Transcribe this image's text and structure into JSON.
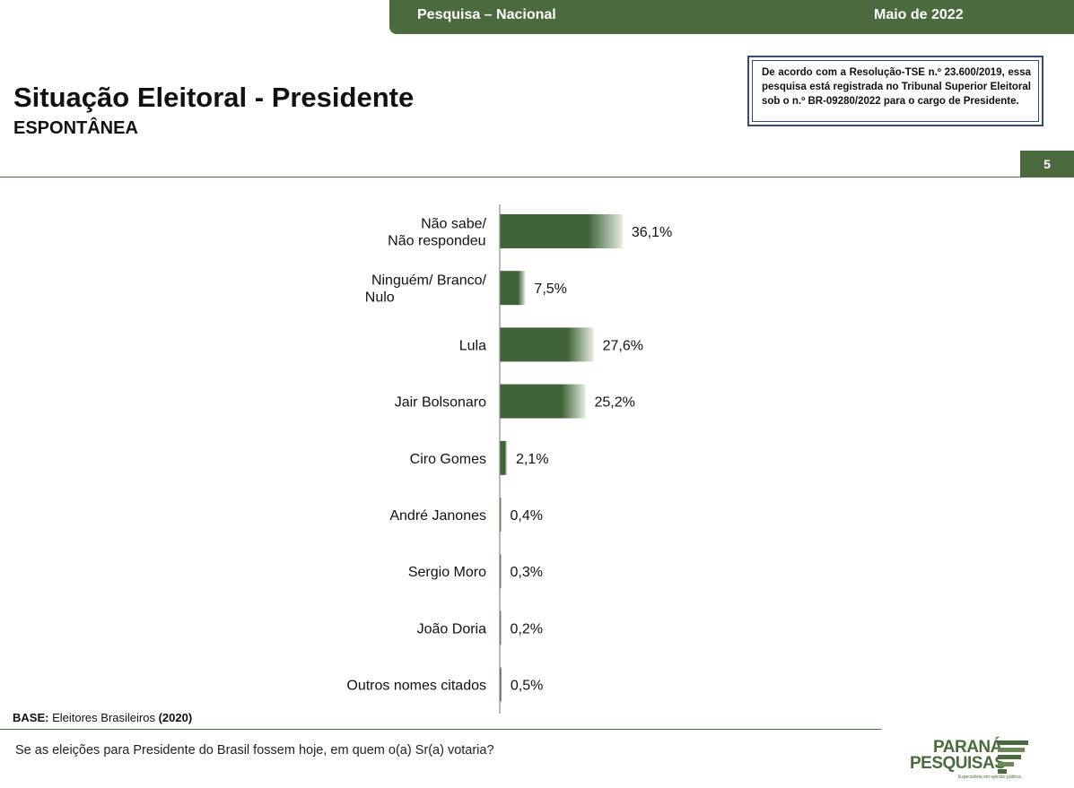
{
  "header": {
    "survey": "Pesquisa – Nacional",
    "date": "Maio de 2022"
  },
  "page": {
    "title": "Situação Eleitoral - Presidente",
    "subtitle": "ESPONTÂNEA",
    "number": "5"
  },
  "notice": "De acordo com a Resolução-TSE n.º 23.600/2019, essa pesquisa está registrada no Tribunal Superior Eleitoral sob o n.º BR-09280/2022 para o cargo de Presidente.",
  "base": {
    "label": "BASE:",
    "text": "Eleitores Brasileiros",
    "year": "(2020)"
  },
  "question": "Se as eleições para Presidente do Brasil fossem hoje, em quem o(a) Sr(a) votaria?",
  "logo": {
    "line1": "PARANÁ",
    "line2": "PESQUISAS",
    "tagline": "Especialista em opinião pública."
  },
  "colors": {
    "accent": "#4b6b3e",
    "bar_dark": "#3f6238",
    "bar_light": "#e4eee0"
  },
  "chart_data": {
    "type": "bar",
    "orientation": "horizontal",
    "categories": [
      [
        "Não sabe/",
        "Não respondeu"
      ],
      [
        "Ninguém/ Branco/",
        "Nulo"
      ],
      [
        "Lula"
      ],
      [
        "Jair Bolsonaro"
      ],
      [
        "Ciro Gomes"
      ],
      [
        "André Janones"
      ],
      [
        "Sergio Moro"
      ],
      [
        "João Doria"
      ],
      [
        "Outros nomes citados"
      ]
    ],
    "values": [
      36.1,
      7.5,
      27.6,
      25.2,
      2.1,
      0.4,
      0.3,
      0.2,
      0.5
    ],
    "value_labels": [
      "36,1%",
      "7,5%",
      "27,6%",
      "25,2%",
      "2,1%",
      "0,4%",
      "0,3%",
      "0,2%",
      "0,5%"
    ],
    "unit": "%",
    "xlim": [
      0,
      100
    ],
    "grid": false,
    "legend": "none"
  }
}
